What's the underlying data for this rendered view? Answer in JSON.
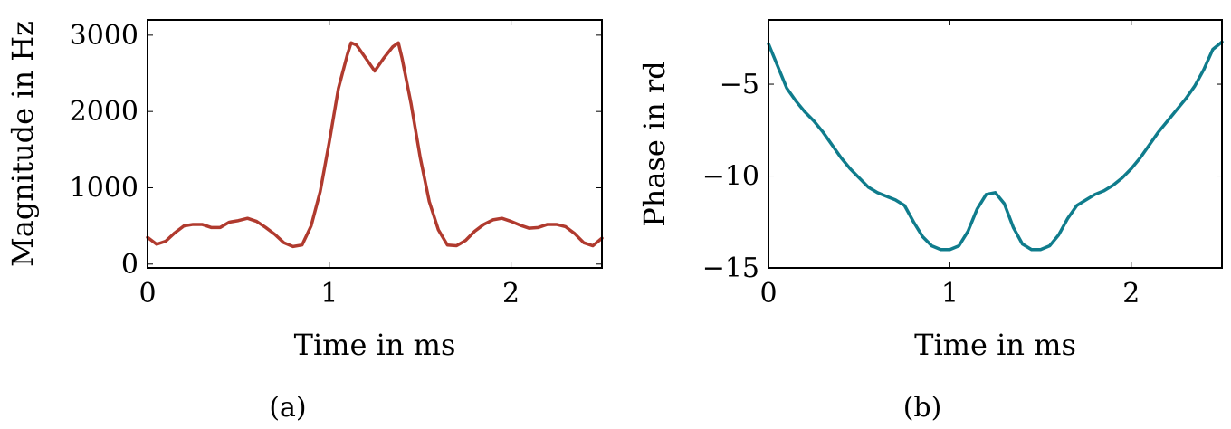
{
  "chart_data": [
    {
      "type": "line",
      "caption": "(a)",
      "xlabel": "Time in ms",
      "ylabel": "Magnitude in Hz",
      "xlim": [
        0,
        2.5
      ],
      "ylim": [
        -50,
        3200
      ],
      "xticks": [
        0,
        1,
        2
      ],
      "yticks": [
        0,
        1000,
        2000,
        3000
      ],
      "xtick_labels": [
        "0",
        "1",
        "2"
      ],
      "ytick_labels": [
        "0",
        "1000",
        "2000",
        "3000"
      ],
      "grid": false,
      "color": "#b03a2e",
      "series": [
        {
          "x": [
            0,
            0.05,
            0.1,
            0.15,
            0.2,
            0.25,
            0.3,
            0.35,
            0.4,
            0.45,
            0.5,
            0.55,
            0.6,
            0.65,
            0.7,
            0.75,
            0.8,
            0.85,
            0.9,
            0.95,
            1.0,
            1.05,
            1.1,
            1.12,
            1.15,
            1.2,
            1.25,
            1.3,
            1.35,
            1.38,
            1.4,
            1.45,
            1.5,
            1.55,
            1.6,
            1.65,
            1.7,
            1.75,
            1.8,
            1.85,
            1.9,
            1.95,
            2.0,
            2.05,
            2.1,
            2.15,
            2.2,
            2.25,
            2.3,
            2.35,
            2.4,
            2.45,
            2.5
          ],
          "y": [
            350,
            260,
            300,
            410,
            500,
            520,
            520,
            480,
            480,
            550,
            570,
            600,
            560,
            480,
            390,
            280,
            230,
            250,
            500,
            950,
            1600,
            2300,
            2750,
            2900,
            2870,
            2700,
            2530,
            2700,
            2850,
            2900,
            2700,
            2100,
            1400,
            820,
            450,
            250,
            240,
            310,
            430,
            520,
            580,
            600,
            560,
            510,
            470,
            480,
            520,
            520,
            490,
            400,
            280,
            240,
            340
          ]
        }
      ]
    },
    {
      "type": "line",
      "caption": "(b)",
      "xlabel": "Time in ms",
      "ylabel": "Phase in rd",
      "xlim": [
        0,
        2.5
      ],
      "ylim": [
        -15,
        -1.5
      ],
      "xticks": [
        0,
        1,
        2
      ],
      "yticks": [
        -15,
        -10,
        -5
      ],
      "xtick_labels": [
        "0",
        "1",
        "2"
      ],
      "ytick_labels": [
        "−15",
        "−10",
        "−5"
      ],
      "grid": false,
      "color": "#0f7c8c",
      "series": [
        {
          "x": [
            0,
            0.05,
            0.1,
            0.15,
            0.2,
            0.25,
            0.3,
            0.35,
            0.4,
            0.45,
            0.5,
            0.55,
            0.6,
            0.65,
            0.7,
            0.75,
            0.8,
            0.85,
            0.9,
            0.95,
            1.0,
            1.05,
            1.1,
            1.15,
            1.2,
            1.25,
            1.3,
            1.35,
            1.4,
            1.45,
            1.5,
            1.55,
            1.6,
            1.65,
            1.7,
            1.75,
            1.8,
            1.85,
            1.9,
            1.95,
            2.0,
            2.05,
            2.1,
            2.15,
            2.2,
            2.25,
            2.3,
            2.35,
            2.4,
            2.45,
            2.5
          ],
          "y": [
            -2.8,
            -4.0,
            -5.2,
            -5.9,
            -6.5,
            -7.0,
            -7.6,
            -8.3,
            -9.0,
            -9.6,
            -10.1,
            -10.6,
            -10.9,
            -11.1,
            -11.3,
            -11.6,
            -12.5,
            -13.3,
            -13.8,
            -14.0,
            -14.0,
            -13.8,
            -13.0,
            -11.8,
            -11.0,
            -10.9,
            -11.5,
            -12.8,
            -13.7,
            -14.0,
            -14.0,
            -13.8,
            -13.2,
            -12.3,
            -11.6,
            -11.3,
            -11.0,
            -10.8,
            -10.5,
            -10.1,
            -9.6,
            -9.0,
            -8.3,
            -7.6,
            -7.0,
            -6.4,
            -5.8,
            -5.1,
            -4.2,
            -3.1,
            -2.7
          ]
        }
      ]
    }
  ]
}
